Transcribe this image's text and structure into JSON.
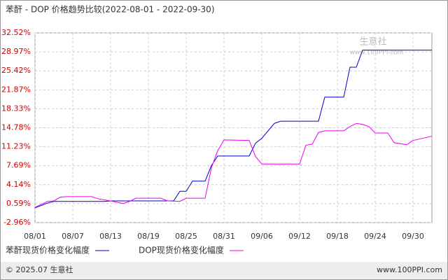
{
  "chart_data": {
    "type": "line",
    "title": "苯酐 - DOP 价格趋势比较(2022-08-01 - 2022-09-30)",
    "xlim": [
      "08/01",
      "10/03"
    ],
    "xticks": [
      "08/01",
      "08/07",
      "08/13",
      "08/19",
      "08/25",
      "08/31",
      "09/06",
      "09/12",
      "09/18",
      "09/24",
      "09/30"
    ],
    "ylim": [
      -2.96,
      32.52
    ],
    "yticks": [
      {
        "value": -2.96,
        "label": "-2.96%"
      },
      {
        "value": 0.59,
        "label": "0.59%"
      },
      {
        "value": 4.14,
        "label": "4.14%"
      },
      {
        "value": 7.69,
        "label": "7.69%"
      },
      {
        "value": 11.23,
        "label": "11.23%"
      },
      {
        "value": 14.78,
        "label": "14.78%"
      },
      {
        "value": 18.33,
        "label": "18.33%"
      },
      {
        "value": 21.87,
        "label": "21.87%"
      },
      {
        "value": 25.42,
        "label": "25.42%"
      },
      {
        "value": 28.97,
        "label": "28.97%"
      },
      {
        "value": 32.52,
        "label": "32.52%"
      }
    ],
    "grid": true,
    "series": [
      {
        "name": "苯酐现货价格变化幅度",
        "color": "#0000cc",
        "x": [
          "08/01",
          "08/03",
          "08/04",
          "08/12",
          "08/13",
          "08/23",
          "08/24",
          "08/25",
          "08/26",
          "08/28",
          "08/29",
          "08/30",
          "09/04",
          "09/05",
          "09/06",
          "09/08",
          "09/09",
          "09/15",
          "09/16",
          "09/19",
          "09/20",
          "09/21",
          "09/22",
          "10/03"
        ],
        "values": [
          -0.2,
          0.7,
          1.0,
          1.0,
          1.1,
          1.1,
          2.9,
          2.9,
          4.8,
          4.8,
          7.7,
          9.5,
          9.5,
          11.9,
          12.8,
          15.6,
          16.0,
          16.0,
          20.5,
          20.5,
          26.1,
          26.1,
          29.3,
          29.3
        ]
      },
      {
        "name": "DOP现货价格变化幅度",
        "color": "#ee00ee",
        "x": [
          "08/01",
          "08/03",
          "08/04",
          "08/05",
          "08/06",
          "08/10",
          "08/11",
          "08/13",
          "08/15",
          "08/16",
          "08/17",
          "08/21",
          "08/22",
          "08/24",
          "08/25",
          "08/28",
          "08/29",
          "08/30",
          "08/31",
          "09/04",
          "09/05",
          "09/06",
          "09/12",
          "09/13",
          "09/14",
          "09/15",
          "09/16",
          "09/19",
          "09/20",
          "09/21",
          "09/22",
          "09/23",
          "09/24",
          "09/26",
          "09/27",
          "09/29",
          "09/30",
          "10/03"
        ],
        "values": [
          -0.1,
          1.0,
          1.1,
          1.8,
          1.9,
          1.9,
          1.5,
          1.1,
          0.6,
          1.0,
          1.6,
          1.6,
          1.1,
          1.0,
          1.6,
          1.6,
          7.3,
          10.5,
          12.5,
          12.4,
          9.4,
          8.0,
          8.0,
          11.5,
          11.7,
          13.9,
          14.2,
          14.2,
          15.0,
          15.6,
          15.4,
          15.0,
          13.8,
          13.8,
          12.0,
          11.6,
          12.4,
          13.2
        ]
      }
    ],
    "watermark": {
      "brand": "生意社",
      "site": "www.100PPI.com"
    },
    "footer": {
      "copyright": "© 2025.07 生意社",
      "site": "www.100PPI.com"
    }
  }
}
